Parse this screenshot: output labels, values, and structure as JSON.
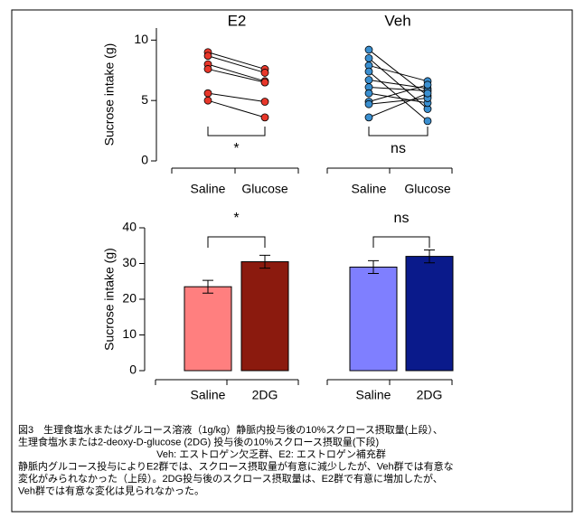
{
  "chart_data": [
    {
      "type": "line",
      "title": "E2",
      "y_label": "Sucrose intake (g)",
      "categories": [
        "Saline",
        "Glucose"
      ],
      "color": "#e8372a",
      "series": [
        {
          "values": [
            9.0,
            7.6
          ]
        },
        {
          "values": [
            8.7,
            7.3
          ]
        },
        {
          "values": [
            8.0,
            6.6
          ]
        },
        {
          "values": [
            7.6,
            6.5
          ]
        },
        {
          "values": [
            5.6,
            4.9
          ]
        },
        {
          "values": [
            5.0,
            3.6
          ]
        }
      ],
      "ylim": [
        0,
        11
      ],
      "yticks": [
        0,
        5,
        10
      ],
      "significance": "*"
    },
    {
      "type": "line",
      "title": "Veh",
      "categories": [
        "Saline",
        "Glucose"
      ],
      "color": "#3a8fd0",
      "series": [
        {
          "values": [
            9.2,
            5.4
          ]
        },
        {
          "values": [
            8.5,
            4.3
          ]
        },
        {
          "values": [
            7.9,
            6.6
          ]
        },
        {
          "values": [
            7.4,
            3.3
          ]
        },
        {
          "values": [
            6.7,
            6.0
          ]
        },
        {
          "values": [
            6.1,
            5.8
          ]
        },
        {
          "values": [
            5.6,
            4.8
          ]
        },
        {
          "values": [
            4.9,
            6.3
          ]
        },
        {
          "values": [
            4.7,
            5.2
          ]
        },
        {
          "values": [
            3.6,
            5.6
          ]
        }
      ],
      "ylim": [
        0,
        11
      ],
      "significance": "ns"
    },
    {
      "type": "bar",
      "y_label": "Sucrose intake (g)",
      "categories": [
        "Saline",
        "2DG"
      ],
      "values": [
        23.5,
        30.5
      ],
      "errors": [
        1.8,
        1.8
      ],
      "colors": [
        "#ff7f7f",
        "#8b1a0e"
      ],
      "ylim": [
        0,
        40
      ],
      "yticks": [
        0,
        10,
        20,
        30,
        40
      ],
      "significance": "*"
    },
    {
      "type": "bar",
      "categories": [
        "Saline",
        "2DG"
      ],
      "values": [
        29.0,
        32.0
      ],
      "errors": [
        1.8,
        1.8
      ],
      "colors": [
        "#7f7fff",
        "#0a1a8b"
      ],
      "ylim": [
        0,
        40
      ],
      "significance": "ns"
    }
  ],
  "caption": [
    "図3　生理食塩水またはグルコース溶液（1g/kg）静脈内投与後の10%スクロース摂取量(上段）、",
    "生理食塩水または2-deoxy-D-glucose (2DG) 投与後の10%スクロース摂取量(下段)",
    "Veh: エストロゲン欠乏群、E2: エストロゲン補充群",
    "静脈内グルコース投与によりE2群では、スクロース摂取量が有意に減少したが、Veh群では有意な",
    "変化がみられなかった（上段）。2DG投与後のスクロース摂取量は、E2群で有意に増加したが、",
    "Veh群では有意な変化は見られなかった。"
  ]
}
